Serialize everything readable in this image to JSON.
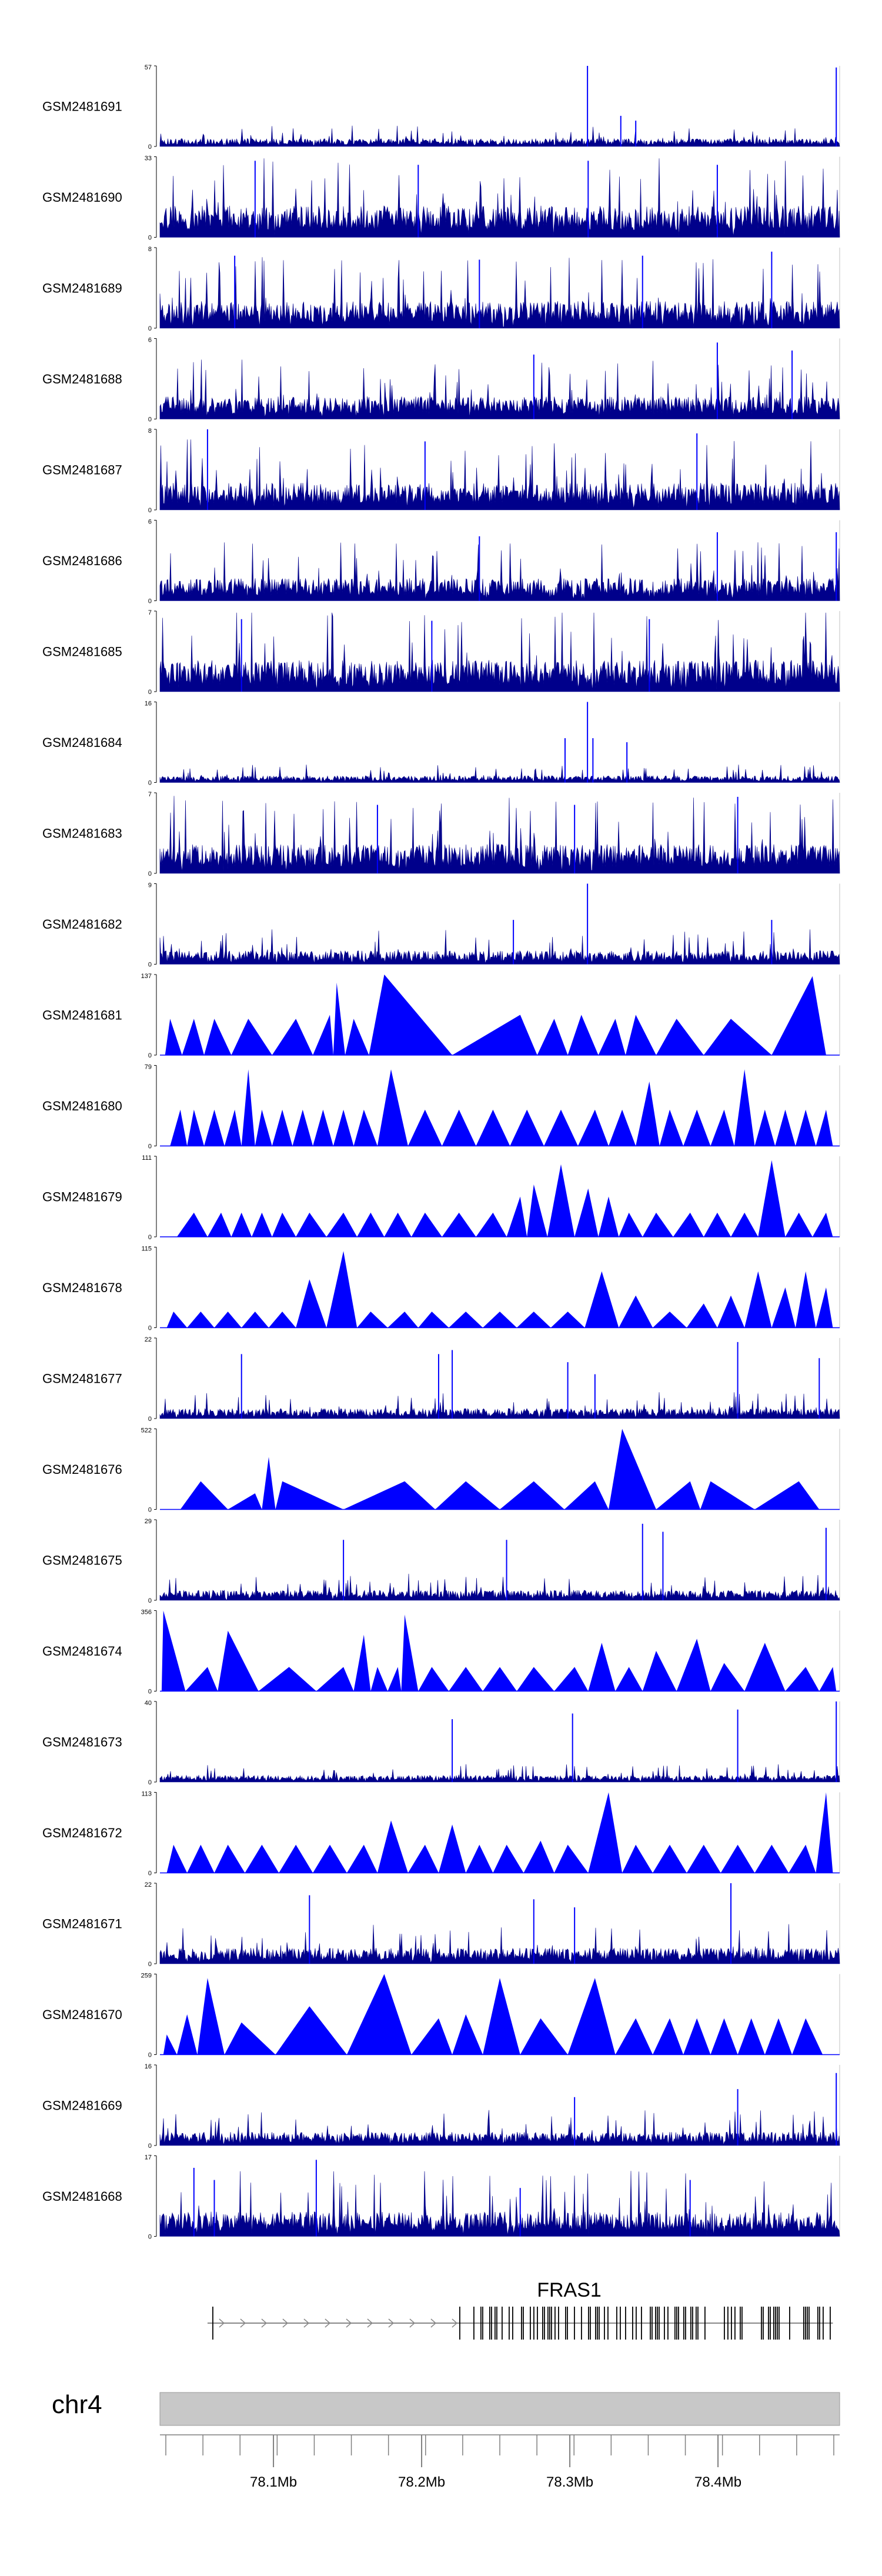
{
  "chart_data": {
    "type": "area",
    "tracks": [
      {
        "name": "GSM2481691",
        "ymin": "0",
        "ymax": "57",
        "style": "bars",
        "level": 0.07,
        "peaks": [
          [
            0.629,
            1.0
          ],
          [
            0.678,
            0.38
          ],
          [
            0.7,
            0.32
          ],
          [
            0.995,
            0.98
          ]
        ]
      },
      {
        "name": "GSM2481690",
        "ymin": "0",
        "ymax": "33",
        "style": "bars",
        "level": 0.28,
        "peaks": [
          [
            0.14,
            0.95
          ],
          [
            0.38,
            0.9
          ],
          [
            0.63,
            0.95
          ],
          [
            0.82,
            0.9
          ]
        ]
      },
      {
        "name": "GSM2481689",
        "ymin": "0",
        "ymax": "8",
        "style": "bars",
        "level": 0.24,
        "peaks": [
          [
            0.11,
            0.9
          ],
          [
            0.47,
            0.85
          ],
          [
            0.71,
            0.9
          ],
          [
            0.9,
            0.95
          ]
        ]
      },
      {
        "name": "GSM2481688",
        "ymin": "0",
        "ymax": "6",
        "style": "bars",
        "level": 0.2,
        "peaks": [
          [
            0.82,
            0.95
          ],
          [
            0.55,
            0.8
          ],
          [
            0.93,
            0.85
          ]
        ]
      },
      {
        "name": "GSM2481687",
        "ymin": "0",
        "ymax": "8",
        "style": "bars",
        "level": 0.24,
        "peaks": [
          [
            0.07,
            1.0
          ],
          [
            0.39,
            0.85
          ],
          [
            0.79,
            0.95
          ]
        ]
      },
      {
        "name": "GSM2481686",
        "ymin": "0",
        "ymax": "6",
        "style": "bars",
        "level": 0.2,
        "peaks": [
          [
            0.47,
            0.8
          ],
          [
            0.82,
            0.85
          ],
          [
            0.995,
            0.85
          ]
        ]
      },
      {
        "name": "GSM2481685",
        "ymin": "0",
        "ymax": "7",
        "style": "bars",
        "level": 0.28,
        "peaks": [
          [
            0.12,
            0.9
          ],
          [
            0.4,
            0.88
          ],
          [
            0.72,
            0.9
          ]
        ]
      },
      {
        "name": "GSM2481684",
        "ymin": "0",
        "ymax": "16",
        "style": "bars",
        "level": 0.06,
        "peaks": [
          [
            0.596,
            0.55
          ],
          [
            0.629,
            1.0
          ],
          [
            0.637,
            0.55
          ],
          [
            0.687,
            0.5
          ]
        ]
      },
      {
        "name": "GSM2481683",
        "ymin": "0",
        "ymax": "7",
        "style": "bars",
        "level": 0.26,
        "peaks": [
          [
            0.85,
            0.95
          ],
          [
            0.32,
            0.85
          ],
          [
            0.61,
            0.85
          ]
        ]
      },
      {
        "name": "GSM2481682",
        "ymin": "0",
        "ymax": "9",
        "style": "bars",
        "level": 0.12,
        "peaks": [
          [
            0.629,
            1.0
          ],
          [
            0.52,
            0.55
          ],
          [
            0.9,
            0.55
          ]
        ]
      },
      {
        "name": "GSM2481681",
        "ymin": "0",
        "ymax": "137",
        "style": "peaks",
        "peaks": [
          [
            0.015,
            0.45
          ],
          [
            0.05,
            0.45
          ],
          [
            0.08,
            0.45
          ],
          [
            0.13,
            0.45
          ],
          [
            0.2,
            0.45
          ],
          [
            0.25,
            0.5
          ],
          [
            0.26,
            0.9
          ],
          [
            0.285,
            0.45
          ],
          [
            0.33,
            1.0
          ],
          [
            0.53,
            0.5
          ],
          [
            0.58,
            0.45
          ],
          [
            0.62,
            0.5
          ],
          [
            0.67,
            0.45
          ],
          [
            0.7,
            0.5
          ],
          [
            0.76,
            0.45
          ],
          [
            0.84,
            0.45
          ],
          [
            0.96,
            0.98
          ]
        ]
      },
      {
        "name": "GSM2481680",
        "ymin": "0",
        "ymax": "79",
        "style": "peaks",
        "peaks": [
          [
            0.03,
            0.45
          ],
          [
            0.05,
            0.45
          ],
          [
            0.08,
            0.45
          ],
          [
            0.11,
            0.45
          ],
          [
            0.13,
            0.95
          ],
          [
            0.15,
            0.45
          ],
          [
            0.18,
            0.45
          ],
          [
            0.21,
            0.45
          ],
          [
            0.24,
            0.45
          ],
          [
            0.27,
            0.45
          ],
          [
            0.3,
            0.45
          ],
          [
            0.34,
            0.95
          ],
          [
            0.39,
            0.45
          ],
          [
            0.44,
            0.45
          ],
          [
            0.49,
            0.45
          ],
          [
            0.54,
            0.45
          ],
          [
            0.59,
            0.45
          ],
          [
            0.64,
            0.45
          ],
          [
            0.68,
            0.45
          ],
          [
            0.72,
            0.8
          ],
          [
            0.75,
            0.45
          ],
          [
            0.79,
            0.45
          ],
          [
            0.83,
            0.45
          ],
          [
            0.86,
            0.95
          ],
          [
            0.89,
            0.45
          ],
          [
            0.92,
            0.45
          ],
          [
            0.95,
            0.45
          ],
          [
            0.98,
            0.45
          ]
        ]
      },
      {
        "name": "GSM2481679",
        "ymin": "0",
        "ymax": "111",
        "style": "peaks",
        "peaks": [
          [
            0.05,
            0.3
          ],
          [
            0.09,
            0.3
          ],
          [
            0.12,
            0.3
          ],
          [
            0.15,
            0.3
          ],
          [
            0.18,
            0.3
          ],
          [
            0.22,
            0.3
          ],
          [
            0.27,
            0.3
          ],
          [
            0.31,
            0.3
          ],
          [
            0.35,
            0.3
          ],
          [
            0.39,
            0.3
          ],
          [
            0.44,
            0.3
          ],
          [
            0.49,
            0.3
          ],
          [
            0.53,
            0.5
          ],
          [
            0.55,
            0.65
          ],
          [
            0.59,
            0.9
          ],
          [
            0.63,
            0.6
          ],
          [
            0.66,
            0.5
          ],
          [
            0.69,
            0.3
          ],
          [
            0.73,
            0.3
          ],
          [
            0.78,
            0.3
          ],
          [
            0.82,
            0.3
          ],
          [
            0.86,
            0.3
          ],
          [
            0.9,
            0.95
          ],
          [
            0.94,
            0.3
          ],
          [
            0.98,
            0.3
          ]
        ]
      },
      {
        "name": "GSM2481678",
        "ymin": "0",
        "ymax": "115",
        "style": "peaks",
        "peaks": [
          [
            0.02,
            0.2
          ],
          [
            0.06,
            0.2
          ],
          [
            0.1,
            0.2
          ],
          [
            0.14,
            0.2
          ],
          [
            0.18,
            0.2
          ],
          [
            0.22,
            0.6
          ],
          [
            0.27,
            0.95
          ],
          [
            0.31,
            0.2
          ],
          [
            0.36,
            0.2
          ],
          [
            0.4,
            0.2
          ],
          [
            0.45,
            0.2
          ],
          [
            0.5,
            0.2
          ],
          [
            0.55,
            0.2
          ],
          [
            0.6,
            0.2
          ],
          [
            0.65,
            0.7
          ],
          [
            0.7,
            0.4
          ],
          [
            0.75,
            0.2
          ],
          [
            0.8,
            0.3
          ],
          [
            0.84,
            0.4
          ],
          [
            0.88,
            0.7
          ],
          [
            0.92,
            0.5
          ],
          [
            0.95,
            0.7
          ],
          [
            0.98,
            0.5
          ]
        ]
      },
      {
        "name": "GSM2481677",
        "ymin": "0",
        "ymax": "22",
        "style": "bars",
        "level": 0.09,
        "peaks": [
          [
            0.12,
            0.8
          ],
          [
            0.41,
            0.8
          ],
          [
            0.43,
            0.85
          ],
          [
            0.6,
            0.7
          ],
          [
            0.64,
            0.55
          ],
          [
            0.85,
            0.95
          ],
          [
            0.97,
            0.75
          ]
        ]
      },
      {
        "name": "GSM2481676",
        "ymin": "0",
        "ymax": "522",
        "style": "peaks",
        "peaks": [
          [
            0.06,
            0.35
          ],
          [
            0.14,
            0.2
          ],
          [
            0.16,
            0.65
          ],
          [
            0.18,
            0.35
          ],
          [
            0.36,
            0.35
          ],
          [
            0.45,
            0.35
          ],
          [
            0.55,
            0.35
          ],
          [
            0.64,
            0.35
          ],
          [
            0.68,
            1.0
          ],
          [
            0.78,
            0.35
          ],
          [
            0.81,
            0.35
          ],
          [
            0.94,
            0.35
          ]
        ]
      },
      {
        "name": "GSM2481675",
        "ymin": "0",
        "ymax": "29",
        "style": "bars",
        "level": 0.09,
        "peaks": [
          [
            0.27,
            0.75
          ],
          [
            0.51,
            0.75
          ],
          [
            0.71,
            0.95
          ],
          [
            0.74,
            0.85
          ],
          [
            0.98,
            0.9
          ]
        ]
      },
      {
        "name": "GSM2481674",
        "ymin": "0",
        "ymax": "356",
        "style": "peaks",
        "peaks": [
          [
            0.005,
            1.0
          ],
          [
            0.07,
            0.3
          ],
          [
            0.1,
            0.75
          ],
          [
            0.19,
            0.3
          ],
          [
            0.27,
            0.3
          ],
          [
            0.3,
            0.7
          ],
          [
            0.32,
            0.3
          ],
          [
            0.35,
            0.3
          ],
          [
            0.36,
            0.95
          ],
          [
            0.4,
            0.3
          ],
          [
            0.45,
            0.3
          ],
          [
            0.5,
            0.3
          ],
          [
            0.55,
            0.3
          ],
          [
            0.61,
            0.3
          ],
          [
            0.65,
            0.6
          ],
          [
            0.69,
            0.3
          ],
          [
            0.73,
            0.5
          ],
          [
            0.79,
            0.65
          ],
          [
            0.83,
            0.35
          ],
          [
            0.89,
            0.6
          ],
          [
            0.95,
            0.3
          ],
          [
            0.99,
            0.3
          ]
        ]
      },
      {
        "name": "GSM2481673",
        "ymin": "0",
        "ymax": "40",
        "style": "bars",
        "level": 0.06,
        "peaks": [
          [
            0.43,
            0.78
          ],
          [
            0.607,
            0.85
          ],
          [
            0.85,
            0.9
          ],
          [
            0.995,
            1.0
          ]
        ]
      },
      {
        "name": "GSM2481672",
        "ymin": "0",
        "ymax": "113",
        "style": "peaks",
        "peaks": [
          [
            0.02,
            0.35
          ],
          [
            0.06,
            0.35
          ],
          [
            0.1,
            0.35
          ],
          [
            0.15,
            0.35
          ],
          [
            0.2,
            0.35
          ],
          [
            0.25,
            0.35
          ],
          [
            0.3,
            0.35
          ],
          [
            0.34,
            0.65
          ],
          [
            0.39,
            0.35
          ],
          [
            0.43,
            0.6
          ],
          [
            0.47,
            0.35
          ],
          [
            0.51,
            0.35
          ],
          [
            0.56,
            0.4
          ],
          [
            0.6,
            0.35
          ],
          [
            0.66,
            1.0
          ],
          [
            0.7,
            0.35
          ],
          [
            0.75,
            0.35
          ],
          [
            0.8,
            0.35
          ],
          [
            0.85,
            0.35
          ],
          [
            0.9,
            0.35
          ],
          [
            0.95,
            0.35
          ],
          [
            0.98,
            1.0
          ]
        ]
      },
      {
        "name": "GSM2481671",
        "ymin": "0",
        "ymax": "22",
        "style": "bars",
        "level": 0.14,
        "peaks": [
          [
            0.22,
            0.85
          ],
          [
            0.55,
            0.8
          ],
          [
            0.84,
            1.0
          ],
          [
            0.61,
            0.7
          ]
        ]
      },
      {
        "name": "GSM2481670",
        "ymin": "0",
        "ymax": "259",
        "style": "peaks",
        "peaks": [
          [
            0.01,
            0.25
          ],
          [
            0.04,
            0.5
          ],
          [
            0.07,
            0.95
          ],
          [
            0.12,
            0.4
          ],
          [
            0.22,
            0.6
          ],
          [
            0.33,
            1.0
          ],
          [
            0.41,
            0.45
          ],
          [
            0.45,
            0.5
          ],
          [
            0.5,
            0.95
          ],
          [
            0.56,
            0.45
          ],
          [
            0.64,
            0.95
          ],
          [
            0.7,
            0.45
          ],
          [
            0.75,
            0.45
          ],
          [
            0.79,
            0.45
          ],
          [
            0.83,
            0.45
          ],
          [
            0.87,
            0.45
          ],
          [
            0.91,
            0.45
          ],
          [
            0.95,
            0.45
          ]
        ]
      },
      {
        "name": "GSM2481669",
        "ymin": "0",
        "ymax": "16",
        "style": "bars",
        "level": 0.12,
        "peaks": [
          [
            0.61,
            0.6
          ],
          [
            0.85,
            0.7
          ],
          [
            0.995,
            0.9
          ]
        ]
      },
      {
        "name": "GSM2481668",
        "ymin": "0",
        "ymax": "17",
        "style": "bars",
        "level": 0.22,
        "peaks": [
          [
            0.05,
            0.85
          ],
          [
            0.08,
            0.7
          ],
          [
            0.23,
            0.95
          ],
          [
            0.53,
            0.6
          ],
          [
            0.78,
            0.7
          ]
        ]
      }
    ],
    "gene": {
      "name": "FRAS1",
      "start": 0.07,
      "end": 0.99,
      "direction": "forward"
    },
    "chromosome": "chr4",
    "x_ticks": [
      "78.1Mb",
      "78.2Mb",
      "78.3Mb",
      "78.4Mb"
    ],
    "x_tick_fracs": [
      0.167,
      0.385,
      0.603,
      0.821
    ]
  },
  "colors": {
    "signal": "#0000ff",
    "signal_dark": "#00008b",
    "ideogram": "#c8c8c8",
    "axis": "#7f7f7f"
  }
}
